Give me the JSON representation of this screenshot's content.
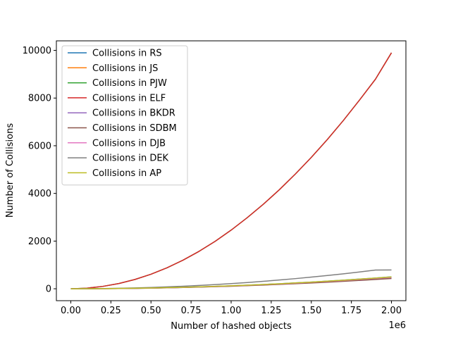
{
  "chart_data": {
    "type": "line",
    "title": "",
    "xlabel": "Number of hashed objects",
    "ylabel": "Number of Collisions",
    "x_offset_label": "1e6",
    "x_scale": 1000000,
    "xlim": [
      -90000,
      2090000
    ],
    "ylim": [
      -500,
      10400
    ],
    "x_ticks": [
      0,
      250000,
      500000,
      750000,
      1000000,
      1250000,
      1500000,
      1750000,
      2000000
    ],
    "x_tick_labels": [
      "0.00",
      "0.25",
      "0.50",
      "0.75",
      "1.00",
      "1.25",
      "1.50",
      "1.75",
      "2.00"
    ],
    "y_ticks": [
      0,
      2000,
      4000,
      6000,
      8000,
      10000
    ],
    "y_tick_labels": [
      "0",
      "2000",
      "4000",
      "6000",
      "8000",
      "10000"
    ],
    "grid": false,
    "legend_position": "top-left",
    "x": [
      0,
      100000,
      200000,
      300000,
      400000,
      500000,
      600000,
      700000,
      800000,
      900000,
      1000000,
      1100000,
      1200000,
      1300000,
      1400000,
      1500000,
      1600000,
      1700000,
      1800000,
      1900000,
      2000000
    ],
    "series": [
      {
        "name": "Collisions in RS",
        "color": "#1f77b4",
        "values": [
          0,
          2,
          6,
          11,
          20,
          30,
          45,
          62,
          80,
          100,
          125,
          150,
          180,
          210,
          245,
          280,
          320,
          360,
          405,
          450,
          500
        ]
      },
      {
        "name": "Collisions in JS",
        "color": "#ff7f0e",
        "values": [
          0,
          2,
          6,
          11,
          19,
          29,
          43,
          59,
          77,
          97,
          120,
          145,
          173,
          203,
          236,
          271,
          308,
          348,
          390,
          434,
          480
        ]
      },
      {
        "name": "Collisions in PJW",
        "color": "#2ca02c",
        "values": [
          0,
          25,
          100,
          220,
          390,
          610,
          880,
          1200,
          1570,
          1990,
          2460,
          2980,
          3540,
          4150,
          4810,
          5510,
          6260,
          7060,
          7910,
          8790,
          9900
        ]
      },
      {
        "name": "Collisions in ELF",
        "color": "#d62728",
        "values": [
          0,
          25,
          100,
          220,
          390,
          610,
          880,
          1200,
          1570,
          1990,
          2460,
          2980,
          3540,
          4150,
          4810,
          5510,
          6260,
          7060,
          7910,
          8790,
          9900
        ]
      },
      {
        "name": "Collisions in BKDR",
        "color": "#9467bd",
        "values": [
          0,
          2,
          5,
          10,
          18,
          27,
          40,
          55,
          72,
          91,
          113,
          137,
          163,
          192,
          223,
          256,
          292,
          330,
          370,
          412,
          455
        ]
      },
      {
        "name": "Collisions in SDBM",
        "color": "#8c564b",
        "values": [
          0,
          2,
          5,
          10,
          17,
          26,
          38,
          52,
          68,
          86,
          107,
          130,
          155,
          182,
          211,
          243,
          277,
          313,
          351,
          391,
          432
        ]
      },
      {
        "name": "Collisions in DJB",
        "color": "#e377c2",
        "values": [
          0,
          2,
          6,
          11,
          19,
          29,
          42,
          58,
          76,
          96,
          119,
          144,
          172,
          202,
          235,
          270,
          307,
          347,
          389,
          433,
          479
        ]
      },
      {
        "name": "Collisions in DEK",
        "color": "#7f7f7f",
        "values": [
          0,
          3,
          10,
          20,
          35,
          54,
          78,
          106,
          139,
          175,
          217,
          262,
          312,
          366,
          425,
          488,
          555,
          627,
          703,
          784,
          790
        ]
      },
      {
        "name": "Collisions in AP",
        "color": "#bcbd22",
        "values": [
          0,
          2,
          6,
          12,
          20,
          31,
          45,
          61,
          80,
          101,
          124,
          150,
          179,
          210,
          244,
          280,
          319,
          360,
          403,
          449,
          498
        ]
      }
    ]
  }
}
